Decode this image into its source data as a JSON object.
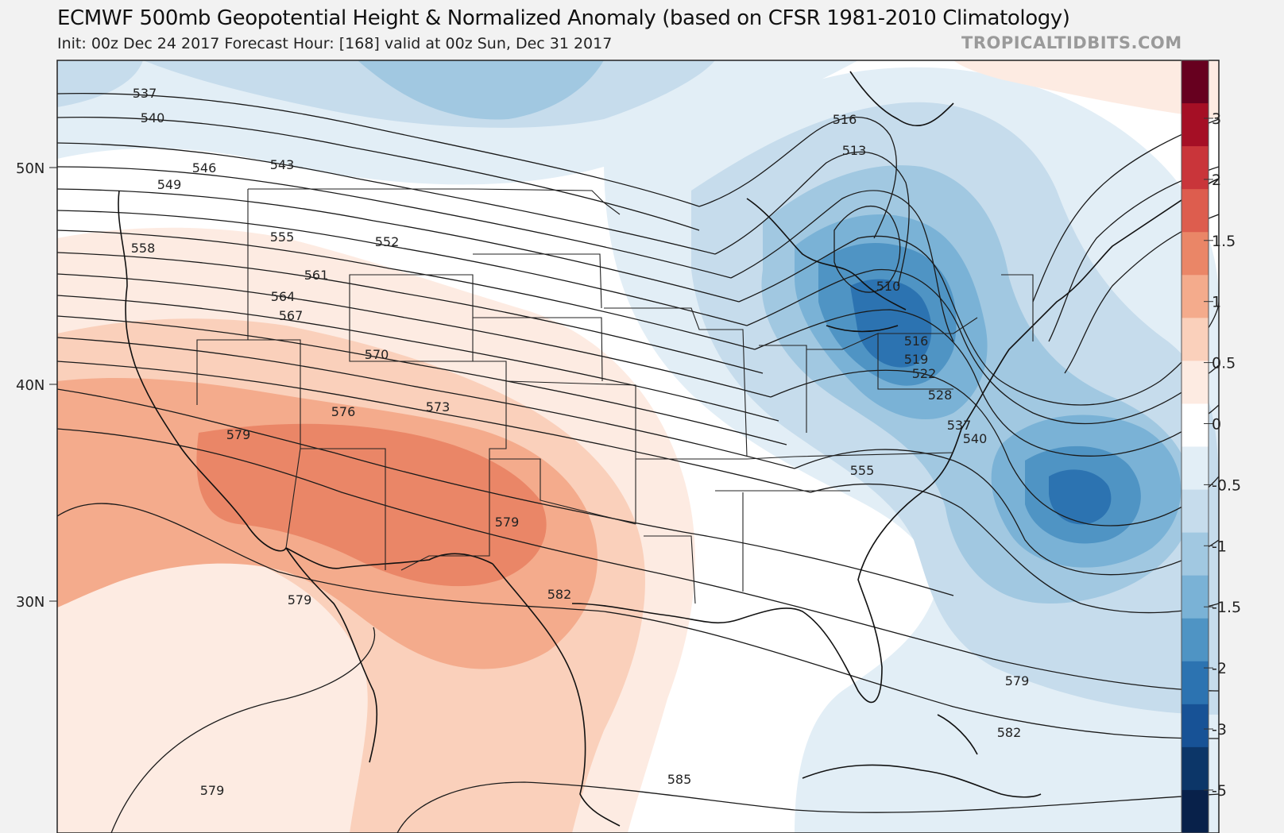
{
  "header": {
    "title": "ECMWF 500mb Geopotential Height & Normalized Anomaly (based on CFSR 1981-2010 Climatology)",
    "subtitle": "Init: 00z Dec 24 2017   Forecast Hour: [168]   valid at 00z Sun, Dec 31 2017",
    "brand": "TROPICALTIDBITS.COM"
  },
  "latitude_labels": [
    "50N",
    "40N",
    "30N"
  ],
  "colorbar": {
    "ticks": [
      "3",
      "2",
      "1.5",
      "1",
      "0.5",
      "0",
      "-0.5",
      "-1",
      "-1.5",
      "-2",
      "-3",
      "-5"
    ],
    "colors": [
      "#67001f",
      "#a50f25",
      "#c9353a",
      "#dd5d4e",
      "#ea8667",
      "#f4ab8c",
      "#fad0bb",
      "#fdebe2",
      "#ffffff",
      "#e2eef6",
      "#c6dcec",
      "#a1c8e1",
      "#7ab2d6",
      "#4f94c4",
      "#2c73b1",
      "#175296",
      "#0c3668",
      "#08214a"
    ]
  },
  "contour_labels": [
    "537",
    "540",
    "546",
    "543",
    "549",
    "558",
    "555",
    "552",
    "561",
    "564",
    "567",
    "570",
    "576",
    "573",
    "579",
    "579",
    "582",
    "579",
    "579",
    "585",
    "582",
    "579",
    "516",
    "513",
    "510",
    "516",
    "519",
    "522",
    "528",
    "537",
    "540",
    "555"
  ],
  "colors": {
    "background": "#f2f2f2",
    "positive_anomaly": "#ea8667",
    "negative_anomaly": "#2c73b1",
    "contour": "#1a1a1a"
  }
}
